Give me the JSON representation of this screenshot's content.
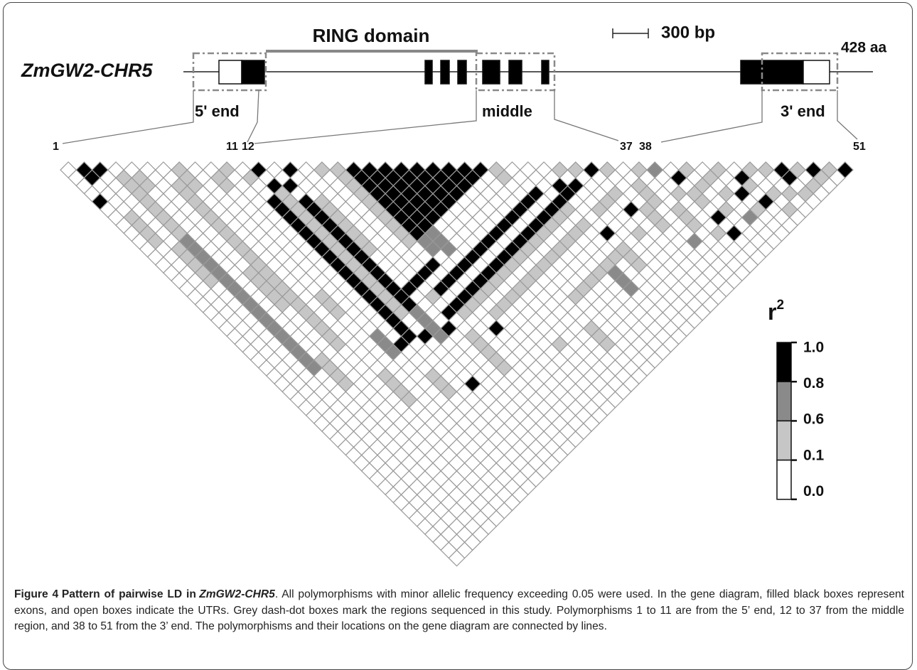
{
  "figure": {
    "gene_name": "ZmGW2-CHR5",
    "domain_label": "RING domain",
    "scale_label": "300 bp",
    "protein_length": "428 aa",
    "region_labels": [
      "5' end",
      "middle",
      "3' end"
    ],
    "marker_labels": [
      1,
      11,
      12,
      37,
      38,
      51
    ],
    "ld": {
      "type": "ld_heatmap",
      "class_colors": [
        "#ffffff",
        "#c6c6c6",
        "#8a8a8a",
        "#000000"
      ],
      "legend_title": "r",
      "legend_title_sup": "2",
      "legend_ticks": [
        {
          "value": 1,
          "label": "1.0"
        },
        0.8,
        0.6,
        0.1,
        {
          "value": 0,
          "label": "0.0"
        }
      ],
      "r2_class": [
        [
          0,
          0,
          0,
          0,
          3,
          0,
          0,
          0,
          0,
          0,
          0,
          0,
          0,
          0,
          0,
          0,
          0,
          0,
          0,
          0,
          0,
          0,
          0,
          0,
          0,
          0,
          0,
          0,
          0,
          0,
          0,
          0,
          0,
          0,
          0,
          0,
          0,
          0,
          0,
          0,
          0,
          0,
          0,
          0,
          0,
          0,
          0,
          0,
          0,
          0
        ],
        [
          3,
          3,
          0,
          0,
          0,
          0,
          1,
          1,
          1,
          1,
          0,
          0,
          0,
          0,
          0,
          0,
          0,
          0,
          0,
          0,
          0,
          0,
          0,
          0,
          0,
          0,
          0,
          0,
          0,
          0,
          0,
          0,
          0,
          0,
          0,
          0,
          0,
          0,
          0,
          0,
          0,
          0,
          0,
          0,
          0,
          0,
          0,
          0,
          0
        ],
        [
          3,
          0,
          0,
          0,
          0,
          0,
          0,
          0,
          0,
          0,
          1,
          1,
          1,
          1,
          1,
          0,
          0,
          0,
          0,
          0,
          0,
          0,
          0,
          0,
          0,
          0,
          0,
          0,
          0,
          0,
          0,
          0,
          0,
          0,
          0,
          0,
          0,
          0,
          0,
          0,
          0,
          0,
          0,
          0,
          0,
          0,
          0,
          0
        ],
        [
          0,
          1,
          1,
          1,
          1,
          1,
          1,
          1,
          1,
          2,
          2,
          2,
          2,
          2,
          2,
          2,
          2,
          2,
          2,
          2,
          2,
          2,
          2,
          2,
          2,
          2,
          0,
          0,
          0,
          0,
          0,
          0,
          0,
          0,
          0,
          0,
          0,
          0,
          0,
          0,
          0,
          0,
          0,
          0,
          0,
          0,
          0
        ],
        [
          0,
          1,
          1,
          0,
          0,
          0,
          0,
          0,
          0,
          0,
          0,
          0,
          0,
          0,
          0,
          0,
          0,
          0,
          0,
          0,
          0,
          0,
          0,
          0,
          1,
          1,
          1,
          1,
          0,
          0,
          0,
          0,
          0,
          0,
          0,
          0,
          0,
          0,
          0,
          0,
          0,
          0,
          0,
          0,
          0,
          0
        ],
        [
          0,
          0,
          0,
          0,
          0,
          0,
          0,
          0,
          0,
          0,
          0,
          0,
          0,
          1,
          1,
          1,
          1,
          1,
          0,
          0,
          0,
          0,
          0,
          0,
          0,
          0,
          0,
          0,
          0,
          0,
          0,
          0,
          0,
          0,
          0,
          0,
          0,
          0,
          0,
          0,
          0,
          0,
          0,
          0,
          0
        ],
        [
          0,
          0,
          1,
          1,
          1,
          1,
          1,
          1,
          1,
          1,
          1,
          1,
          1,
          1,
          1,
          1,
          1,
          1,
          1,
          1,
          1,
          1,
          1,
          0,
          0,
          0,
          0,
          0,
          0,
          0,
          0,
          0,
          0,
          0,
          0,
          0,
          0,
          0,
          0,
          0,
          0,
          0,
          0,
          0
        ],
        [
          1,
          1,
          1,
          0,
          0,
          0,
          0,
          0,
          0,
          0,
          0,
          0,
          0,
          0,
          0,
          0,
          0,
          0,
          0,
          0,
          0,
          0,
          0,
          0,
          0,
          0,
          1,
          1,
          1,
          1,
          0,
          0,
          0,
          0,
          0,
          0,
          0,
          0,
          0,
          0,
          0,
          0,
          0
        ],
        [
          0,
          0,
          0,
          0,
          0,
          0,
          0,
          0,
          0,
          0,
          0,
          0,
          0,
          0,
          0,
          0,
          1,
          1,
          1,
          0,
          0,
          0,
          0,
          0,
          0,
          0,
          0,
          0,
          0,
          0,
          0,
          0,
          0,
          0,
          0,
          0,
          0,
          0,
          0,
          0,
          0,
          0
        ],
        [
          0,
          1,
          1,
          0,
          0,
          0,
          0,
          0,
          0,
          0,
          0,
          0,
          0,
          0,
          0,
          0,
          0,
          0,
          0,
          0,
          0,
          2,
          2,
          2,
          0,
          0,
          0,
          0,
          0,
          0,
          0,
          0,
          0,
          0,
          0,
          0,
          0,
          0,
          0,
          0,
          0
        ],
        [
          1,
          0,
          0,
          0,
          0,
          0,
          0,
          0,
          0,
          0,
          0,
          0,
          0,
          0,
          0,
          0,
          0,
          0,
          0,
          0,
          0,
          0,
          3,
          0,
          0,
          0,
          1,
          1,
          1,
          0,
          0,
          0,
          0,
          0,
          0,
          0,
          0,
          0,
          0,
          0
        ],
        [
          0,
          1,
          0,
          0,
          3,
          3,
          3,
          3,
          3,
          3,
          3,
          3,
          3,
          3,
          3,
          3,
          3,
          3,
          3,
          3,
          3,
          3,
          0,
          0,
          0,
          0,
          0,
          0,
          0,
          0,
          0,
          0,
          0,
          0,
          0,
          0,
          0,
          0,
          0
        ],
        [
          3,
          0,
          3,
          1,
          1,
          1,
          1,
          1,
          1,
          1,
          1,
          1,
          1,
          1,
          1,
          1,
          1,
          1,
          1,
          0,
          0,
          3,
          0,
          0,
          0,
          0,
          0,
          3,
          0,
          0,
          0,
          0,
          0,
          0,
          0,
          0,
          0,
          0
        ],
        [
          0,
          0,
          3,
          0,
          3,
          3,
          3,
          3,
          3,
          3,
          3,
          3,
          3,
          3,
          3,
          3,
          3,
          3,
          2,
          2,
          2,
          2,
          0,
          0,
          0,
          0,
          0,
          0,
          0,
          0,
          0,
          0,
          0,
          0,
          0,
          0,
          0
        ],
        [
          3,
          0,
          0,
          0,
          1,
          1,
          1,
          1,
          1,
          1,
          1,
          0,
          0,
          0,
          0,
          3,
          0,
          0,
          0,
          0,
          3,
          0,
          0,
          0,
          0,
          0,
          0,
          0,
          0,
          0,
          0,
          0,
          0,
          0,
          0,
          0
        ],
        [
          0,
          0,
          0,
          0,
          0,
          0,
          0,
          0,
          0,
          0,
          0,
          0,
          0,
          0,
          3,
          0,
          1,
          0,
          3,
          0,
          0,
          1,
          1,
          1,
          1,
          1,
          0,
          0,
          0,
          0,
          0,
          0,
          0,
          0,
          0
        ],
        [
          1,
          0,
          0,
          0,
          0,
          0,
          0,
          0,
          0,
          0,
          0,
          0,
          0,
          3,
          0,
          3,
          0,
          3,
          1,
          0,
          0,
          0,
          0,
          0,
          0,
          0,
          0,
          0,
          0,
          0,
          0,
          0,
          0,
          0
        ],
        [
          1,
          1,
          1,
          1,
          1,
          1,
          1,
          1,
          1,
          1,
          0,
          0,
          3,
          0,
          3,
          0,
          3,
          1,
          0,
          0,
          3,
          0,
          0,
          0,
          0,
          0,
          0,
          0,
          0,
          0,
          0,
          0,
          0
        ],
        [
          3,
          3,
          3,
          3,
          3,
          3,
          3,
          3,
          3,
          2,
          2,
          0,
          0,
          3,
          0,
          3,
          1,
          0,
          1,
          0,
          0,
          0,
          0,
          0,
          0,
          0,
          0,
          0,
          0,
          0,
          0,
          0
        ],
        [
          3,
          3,
          3,
          3,
          3,
          3,
          3,
          3,
          2,
          2,
          2,
          0,
          3,
          0,
          3,
          1,
          0,
          1,
          0,
          0,
          0,
          0,
          0,
          0,
          0,
          0,
          0,
          0,
          0,
          0,
          0
        ],
        [
          3,
          3,
          3,
          3,
          3,
          3,
          3,
          0,
          0,
          0,
          0,
          3,
          0,
          3,
          1,
          0,
          1,
          0,
          0,
          0,
          0,
          0,
          1,
          0,
          0,
          0,
          0,
          0,
          0,
          0
        ],
        [
          3,
          3,
          3,
          3,
          3,
          3,
          0,
          0,
          0,
          0,
          3,
          0,
          3,
          1,
          0,
          1,
          0,
          0,
          0,
          0,
          0,
          0,
          0,
          0,
          0,
          0,
          0,
          0,
          0
        ],
        [
          3,
          3,
          3,
          3,
          3,
          0,
          0,
          0,
          0,
          3,
          0,
          3,
          1,
          0,
          1,
          0,
          0,
          0,
          0,
          0,
          0,
          0,
          0,
          0,
          0,
          0,
          0,
          0
        ],
        [
          3,
          3,
          3,
          3,
          0,
          0,
          0,
          0,
          3,
          0,
          3,
          1,
          0,
          1,
          0,
          0,
          0,
          0,
          0,
          0,
          1,
          1,
          1,
          0,
          0,
          0,
          0
        ],
        [
          3,
          3,
          3,
          0,
          0,
          0,
          0,
          3,
          0,
          3,
          1,
          0,
          1,
          0,
          0,
          0,
          1,
          0,
          0,
          0,
          0,
          0,
          0,
          0,
          0,
          0
        ],
        [
          3,
          3,
          0,
          0,
          0,
          0,
          3,
          0,
          3,
          1,
          0,
          1,
          0,
          0,
          0,
          1,
          0,
          0,
          0,
          0,
          0,
          0,
          0,
          0,
          0
        ],
        [
          3,
          0,
          0,
          0,
          0,
          3,
          0,
          3,
          1,
          0,
          1,
          0,
          0,
          0,
          1,
          0,
          0,
          0,
          0,
          0,
          0,
          0,
          0,
          0
        ],
        [
          1,
          1,
          0,
          0,
          3,
          0,
          3,
          1,
          0,
          1,
          0,
          0,
          0,
          1,
          0,
          0,
          0,
          0,
          0,
          0,
          0,
          0,
          0
        ],
        [
          0,
          0,
          0,
          3,
          0,
          3,
          1,
          0,
          1,
          0,
          0,
          0,
          1,
          2,
          2,
          2,
          0,
          0,
          0,
          0,
          0,
          0
        ],
        [
          0,
          0,
          0,
          0,
          3,
          1,
          0,
          1,
          0,
          0,
          0,
          1,
          0,
          0,
          0,
          0,
          0,
          0,
          0,
          0,
          0
        ],
        [
          0,
          0,
          3,
          3,
          0,
          0,
          0,
          0,
          3,
          0,
          1,
          1,
          1,
          0,
          0,
          0,
          0,
          0,
          0,
          0
        ],
        [
          1,
          0,
          3,
          0,
          0,
          1,
          0,
          0,
          0,
          0,
          0,
          0,
          0,
          0,
          0,
          0,
          0,
          0,
          0
        ],
        [
          1,
          0,
          0,
          0,
          1,
          0,
          0,
          0,
          1,
          0,
          0,
          0,
          0,
          0,
          0,
          0,
          0,
          0
        ],
        [
          3,
          0,
          0,
          1,
          0,
          3,
          0,
          0,
          0,
          0,
          0,
          0,
          0,
          0,
          0,
          0,
          0
        ],
        [
          1,
          0,
          0,
          0,
          0,
          1,
          1,
          1,
          0,
          0,
          0,
          0,
          0,
          0,
          0,
          0
        ],
        [
          0,
          0,
          1,
          1,
          1,
          0,
          0,
          0,
          0,
          2,
          0,
          0,
          0,
          0,
          0
        ],
        [
          1,
          0,
          0,
          0,
          0,
          1,
          1,
          1,
          0,
          0,
          0,
          0,
          0,
          0
        ],
        [
          2,
          0,
          0,
          1,
          0,
          0,
          0,
          0,
          1,
          0,
          0,
          0,
          0
        ],
        [
          0,
          3,
          0,
          1,
          1,
          0,
          3,
          0,
          3,
          0,
          0,
          0
        ],
        [
          1,
          0,
          1,
          0,
          0,
          1,
          0,
          0,
          0,
          0,
          0
        ],
        [
          0,
          1,
          0,
          1,
          0,
          0,
          2,
          0,
          0,
          0
        ],
        [
          1,
          0,
          0,
          3,
          0,
          1,
          0,
          0,
          0
        ],
        [
          0,
          3,
          1,
          0,
          3,
          0,
          0,
          0
        ],
        [
          1,
          0,
          0,
          1,
          0,
          1,
          0
        ],
        [
          1,
          0,
          0,
          1,
          0,
          0
        ],
        [
          3,
          3,
          0,
          1,
          0
        ],
        [
          1,
          0,
          1,
          0
        ],
        [
          3,
          1,
          0
        ],
        [
          1,
          0
        ],
        [
          3
        ]
      ]
    }
  },
  "caption": {
    "label": "Figure 4",
    "title": "Pattern of pairwise LD in",
    "title_gene": "ZmGW2-CHR5",
    "body": ". All polymorphisms with minor allelic frequency exceeding 0.05 were used. In the gene diagram, filled black boxes represent exons, and open boxes indicate the UTRs. Grey dash-dot boxes mark the regions sequenced in this study. Polymorphisms 1 to 11 are from the 5’ end, 12 to 37 from the middle region, and 38 to 51 from the 3’ end. The polymorphisms and their locations on the gene diagram are connected by lines."
  }
}
